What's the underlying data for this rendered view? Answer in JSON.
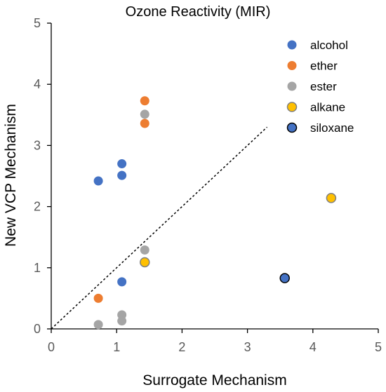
{
  "chart_data": {
    "type": "scatter",
    "title": "Ozone Reactivity (MIR)",
    "xlabel": "Surrogate Mechanism",
    "ylabel": "New VCP Mechanism",
    "xlim": [
      0,
      5
    ],
    "ylim": [
      0,
      5
    ],
    "xticks": [
      "0",
      "1",
      "2",
      "3",
      "4",
      "5"
    ],
    "yticks": [
      "0",
      "1",
      "2",
      "3",
      "4",
      "5"
    ],
    "grid": false,
    "legend_position": "top-right",
    "reference_line": {
      "style": "dashed",
      "color": "#000000",
      "from": [
        0,
        0
      ],
      "to": [
        3.3,
        3.3
      ]
    },
    "series": [
      {
        "name": "alcohol",
        "color": "#4472C4",
        "edge": "none",
        "points": [
          [
            0.72,
            2.42
          ],
          [
            1.08,
            2.7
          ],
          [
            1.08,
            2.51
          ],
          [
            1.08,
            0.77
          ]
        ]
      },
      {
        "name": "ether",
        "color": "#ED7D31",
        "edge": "none",
        "points": [
          [
            1.43,
            3.73
          ],
          [
            1.43,
            3.36
          ],
          [
            0.72,
            0.5
          ]
        ]
      },
      {
        "name": "ester",
        "color": "#A5A5A5",
        "edge": "none",
        "points": [
          [
            1.43,
            3.51
          ],
          [
            1.43,
            1.29
          ],
          [
            1.08,
            0.23
          ],
          [
            1.08,
            0.13
          ],
          [
            0.72,
            0.07
          ]
        ]
      },
      {
        "name": "alkane",
        "color": "#FFC000",
        "edge": "#7F7F7F",
        "points": [
          [
            4.28,
            2.14
          ],
          [
            1.43,
            1.09
          ]
        ]
      },
      {
        "name": "siloxane",
        "color": "#4472C4",
        "edge": "#000000",
        "points": [
          [
            3.57,
            0.83
          ]
        ]
      }
    ]
  }
}
